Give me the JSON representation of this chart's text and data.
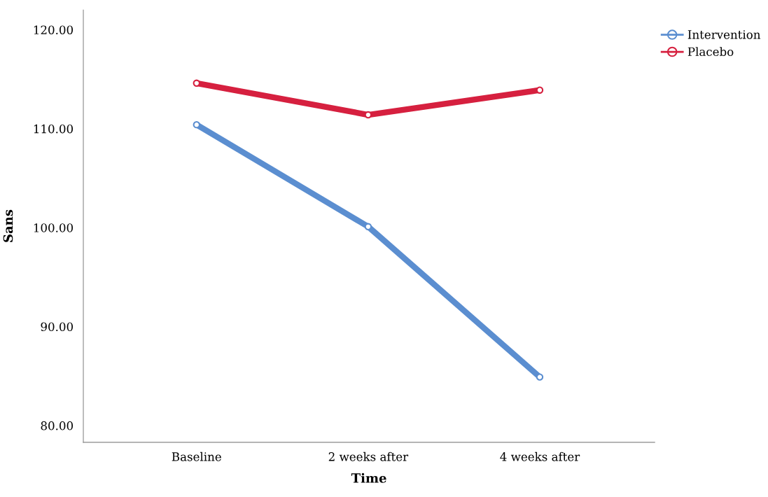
{
  "chart_data": {
    "type": "line",
    "xlabel": "Time",
    "ylabel": "Sans",
    "categories": [
      "Baseline",
      "2 weeks after",
      "4 weeks after"
    ],
    "series": [
      {
        "name": "Intervention",
        "color": "#5b8ed0",
        "values": [
          110.4,
          100.1,
          84.9
        ]
      },
      {
        "name": "Placebo",
        "color": "#d6203f",
        "values": [
          114.6,
          111.4,
          113.9
        ]
      }
    ],
    "ylim": [
      78.3,
      122
    ],
    "yticks": [
      {
        "value": 80,
        "label": "80.00"
      },
      {
        "value": 90,
        "label": "90.00"
      },
      {
        "value": 100,
        "label": "100.00"
      },
      {
        "value": 110,
        "label": "110.00"
      },
      {
        "value": 120,
        "label": "120.00"
      }
    ],
    "marker": "circle",
    "line_style": "solid",
    "grid": false,
    "legend": "top right"
  }
}
